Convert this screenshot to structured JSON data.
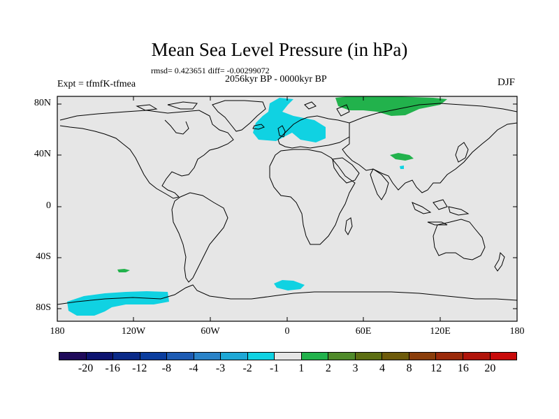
{
  "title": "Mean Sea Level Pressure (in hPa)",
  "stats": "rmsd= 0.423651 diff= -0.00299072",
  "period": "2056kyr BP - 0000kyr BP",
  "experiment": "Expt = tfmfK-tfmea",
  "season": "DJF",
  "lat_labels": [
    "80N",
    "40N",
    "0",
    "40S",
    "80S"
  ],
  "lon_labels": [
    "180",
    "120W",
    "60W",
    "0",
    "60E",
    "120E",
    "180"
  ],
  "colorbar": {
    "colors": [
      "#1f0a5a",
      "#0d1470",
      "#0a2a88",
      "#0a3d9e",
      "#1d5bb3",
      "#2a83c8",
      "#1ea8d6",
      "#10d2e2",
      "#e6e6e6",
      "#22b24c",
      "#4f8a2a",
      "#5c6e12",
      "#6d5a0a",
      "#8a3d0a",
      "#9a2a0a",
      "#b0140a",
      "#c80a0a"
    ],
    "labels": [
      "-20",
      "-16",
      "-12",
      "-8",
      "-4",
      "-3",
      "-2",
      "-1",
      "1",
      "2",
      "3",
      "4",
      "8",
      "12",
      "16",
      "20"
    ]
  },
  "colors": {
    "land_ocean_bg": "#e6e6e6",
    "negative_anomaly": "#10d2e2",
    "positive_anomaly": "#22b24c"
  }
}
